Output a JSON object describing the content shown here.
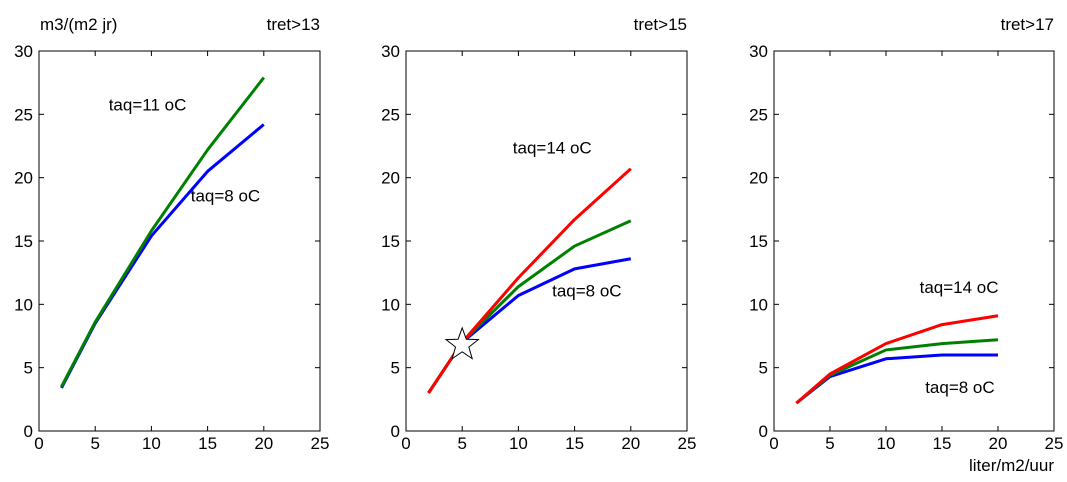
{
  "colors": {
    "blue": "#0000ff",
    "green": "#008000",
    "red": "#ff0000",
    "axis": "#000000"
  },
  "chart_data": [
    {
      "type": "line",
      "ylabel": "m3/(m2 jr)",
      "title": "tret>13",
      "xlabel": "",
      "xlim": [
        0,
        25
      ],
      "ylim": [
        0,
        30
      ],
      "xticks": [
        "0",
        "5",
        "10",
        "15",
        "20",
        "25"
      ],
      "yticks": [
        "0",
        "5",
        "10",
        "15",
        "20",
        "25",
        "30"
      ],
      "grid": false,
      "x": [
        2,
        5,
        10,
        15,
        20
      ],
      "series": [
        {
          "color": "#0000ff",
          "values": [
            3.4,
            8.5,
            15.4,
            20.5,
            24.2
          ]
        },
        {
          "color": "#008000",
          "values": [
            3.5,
            8.6,
            15.8,
            22.2,
            27.9
          ]
        }
      ],
      "annotations": [
        {
          "text": "taq=11 oC",
          "x": 6.2,
          "y": 25.3
        },
        {
          "text": "taq=8 oC",
          "x": 13.5,
          "y": 18.1
        }
      ],
      "markers": []
    },
    {
      "type": "line",
      "ylabel": "",
      "title": "tret>15",
      "xlabel": "",
      "xlim": [
        0,
        25
      ],
      "ylim": [
        0,
        30
      ],
      "xticks": [
        "0",
        "5",
        "10",
        "15",
        "20",
        "25"
      ],
      "yticks": [
        "0",
        "5",
        "10",
        "15",
        "20",
        "25",
        "30"
      ],
      "grid": false,
      "x": [
        2,
        5,
        10,
        15,
        20
      ],
      "series": [
        {
          "color": "#0000ff",
          "values": [
            3.0,
            7.0,
            10.7,
            12.8,
            13.6
          ]
        },
        {
          "color": "#008000",
          "values": [
            3.0,
            7.0,
            11.4,
            14.6,
            16.6
          ]
        },
        {
          "color": "#ff0000",
          "values": [
            3.0,
            7.0,
            12.1,
            16.7,
            20.7
          ]
        }
      ],
      "annotations": [
        {
          "text": "taq=14 oC",
          "x": 9.5,
          "y": 21.9
        },
        {
          "text": "taq=8 oC",
          "x": 13.0,
          "y": 10.6
        }
      ],
      "markers": [
        {
          "shape": "star",
          "x": 5,
          "y": 6.8
        }
      ]
    },
    {
      "type": "line",
      "ylabel": "",
      "title": "tret>17",
      "xlabel": "liter/m2/uur",
      "xlim": [
        0,
        25
      ],
      "ylim": [
        0,
        30
      ],
      "xticks": [
        "0",
        "5",
        "10",
        "15",
        "20",
        "25"
      ],
      "yticks": [
        "0",
        "5",
        "10",
        "15",
        "20",
        "25",
        "30"
      ],
      "grid": false,
      "x": [
        2,
        5,
        10,
        15,
        20
      ],
      "series": [
        {
          "color": "#0000ff",
          "values": [
            2.2,
            4.3,
            5.7,
            6.0,
            6.0
          ]
        },
        {
          "color": "#008000",
          "values": [
            2.2,
            4.4,
            6.4,
            6.9,
            7.2
          ]
        },
        {
          "color": "#ff0000",
          "values": [
            2.2,
            4.5,
            6.9,
            8.4,
            9.1
          ]
        }
      ],
      "annotations": [
        {
          "text": "taq=14 oC",
          "x": 13.0,
          "y": 10.9
        },
        {
          "text": "taq=8 oC",
          "x": 13.5,
          "y": 3.0
        }
      ],
      "markers": []
    }
  ]
}
